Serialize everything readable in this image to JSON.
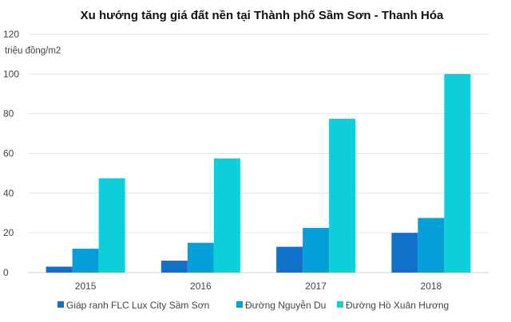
{
  "chart_data": {
    "type": "bar",
    "title": "Xu hướng tăng giá đất nền tại Thành phố Sầm Sơn - Thanh Hóa",
    "ylabel": "triệu đồng/m2",
    "xlabel": "",
    "categories": [
      "2015",
      "2016",
      "2017",
      "2018"
    ],
    "ylim": [
      0,
      120
    ],
    "yticks": [
      0,
      20,
      40,
      60,
      80,
      100,
      120
    ],
    "grid": true,
    "legend": "bottom",
    "series": [
      {
        "name": "Giáp ranh FLC Lux City Sầm Sơn",
        "color": "#1170c8",
        "values": [
          3,
          6,
          13,
          20
        ]
      },
      {
        "name": "Đường Nguyễn Du",
        "color": "#049fd9",
        "values": [
          12,
          15,
          22.5,
          27.5
        ]
      },
      {
        "name": "Đường Hồ Xuân Hương",
        "color": "#0ccfd9",
        "values": [
          47.5,
          57.5,
          77.5,
          100
        ]
      }
    ]
  }
}
